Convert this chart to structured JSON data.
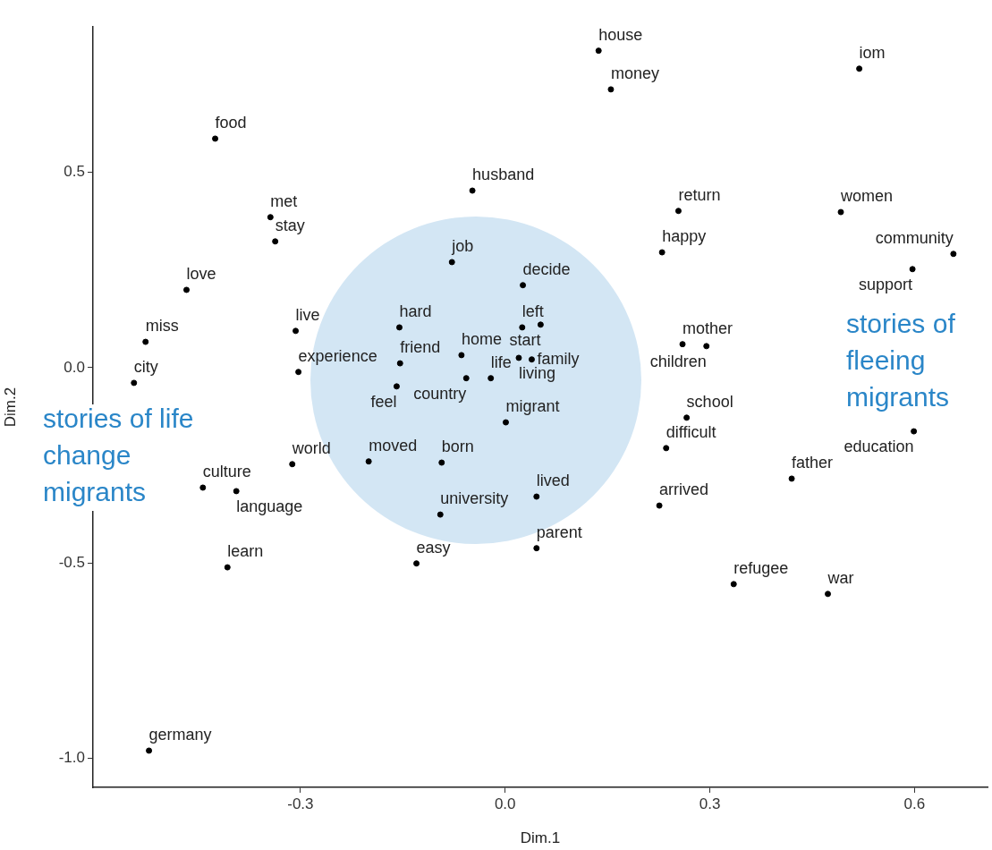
{
  "chart_data": {
    "type": "scatter",
    "xlabel": "Dim.1",
    "ylabel": "Dim.2",
    "color": "#000000",
    "marker": "circle",
    "x": [
      0.137,
      0.155,
      0.519,
      -0.425,
      -0.048,
      -0.344,
      0.254,
      0.492,
      -0.337,
      0.23,
      0.657,
      -0.078,
      0.597,
      -0.467,
      0.026,
      -0.155,
      0.025,
      0.052,
      -0.307,
      -0.527,
      0.26,
      0.295,
      -0.064,
      0.02,
      0.039,
      -0.154,
      -0.303,
      -0.544,
      -0.057,
      -0.021,
      -0.159,
      0.266,
      0.001,
      0.599,
      0.236,
      -0.312,
      -0.2,
      -0.093,
      0.42,
      -0.443,
      -0.394,
      0.046,
      0.226,
      -0.095,
      0.046,
      -0.13,
      -0.407,
      0.335,
      0.473,
      -0.522
    ],
    "values": [
      0.811,
      0.712,
      0.765,
      0.586,
      0.453,
      0.385,
      0.401,
      0.398,
      0.323,
      0.295,
      0.291,
      0.27,
      0.252,
      0.199,
      0.211,
      0.103,
      0.103,
      0.11,
      0.094,
      0.066,
      0.06,
      0.055,
      0.032,
      0.025,
      0.021,
      0.011,
      -0.011,
      -0.039,
      -0.027,
      -0.027,
      -0.048,
      -0.128,
      -0.14,
      -0.163,
      -0.206,
      -0.247,
      -0.24,
      -0.243,
      -0.284,
      -0.307,
      -0.316,
      -0.33,
      -0.353,
      -0.376,
      -0.462,
      -0.501,
      -0.511,
      -0.554,
      -0.579,
      -0.98
    ],
    "xlim": [
      -0.604,
      0.707
    ],
    "ylim": [
      -1.074,
      0.872
    ],
    "xticks": [
      -0.3,
      {
        "value": 0,
        "label": "0.0"
      },
      0.3,
      0.6
    ],
    "yticks": [
      {
        "value": -1,
        "label": "-1.0"
      },
      -0.5,
      {
        "value": 0,
        "label": "0.0"
      },
      0.5
    ],
    "annotations": [
      {
        "text": "house",
        "x": 0.137,
        "y": 0.811
      },
      {
        "text": "money",
        "x": 0.155,
        "y": 0.712
      },
      {
        "text": "iom",
        "x": 0.519,
        "y": 0.765
      },
      {
        "text": "food",
        "x": -0.425,
        "y": 0.586
      },
      {
        "text": "husband",
        "x": -0.048,
        "y": 0.453
      },
      {
        "text": "met",
        "x": -0.344,
        "y": 0.385
      },
      {
        "text": "return",
        "x": 0.254,
        "y": 0.401
      },
      {
        "text": "women",
        "x": 0.492,
        "y": 0.398
      },
      {
        "text": "stay",
        "x": -0.337,
        "y": 0.323
      },
      {
        "text": "happy",
        "x": 0.23,
        "y": 0.295
      },
      {
        "text": "community",
        "x": 0.657,
        "y": 0.291
      },
      {
        "text": "job",
        "x": -0.078,
        "y": 0.27
      },
      {
        "text": "support",
        "x": 0.597,
        "y": 0.252
      },
      {
        "text": "love",
        "x": -0.467,
        "y": 0.199
      },
      {
        "text": "decide",
        "x": 0.026,
        "y": 0.211
      },
      {
        "text": "hard",
        "x": -0.155,
        "y": 0.103
      },
      {
        "text": "left",
        "x": 0.025,
        "y": 0.103
      },
      {
        "text": "start",
        "x": 0.052,
        "y": 0.11
      },
      {
        "text": "live",
        "x": -0.307,
        "y": 0.094
      },
      {
        "text": "miss",
        "x": -0.527,
        "y": 0.066
      },
      {
        "text": "mother",
        "x": 0.26,
        "y": 0.06
      },
      {
        "text": "children",
        "x": 0.295,
        "y": 0.055
      },
      {
        "text": "home",
        "x": -0.064,
        "y": 0.032
      },
      {
        "text": "living",
        "x": 0.02,
        "y": 0.025
      },
      {
        "text": "family",
        "x": 0.039,
        "y": 0.021
      },
      {
        "text": "friend",
        "x": -0.154,
        "y": 0.011
      },
      {
        "text": "experience",
        "x": -0.303,
        "y": -0.011
      },
      {
        "text": "city",
        "x": -0.544,
        "y": -0.039
      },
      {
        "text": "country",
        "x": -0.057,
        "y": -0.027
      },
      {
        "text": "life",
        "x": -0.021,
        "y": -0.027
      },
      {
        "text": "feel",
        "x": -0.159,
        "y": -0.048
      },
      {
        "text": "school",
        "x": 0.266,
        "y": -0.128
      },
      {
        "text": "migrant",
        "x": 0.001,
        "y": -0.14
      },
      {
        "text": "education",
        "x": 0.599,
        "y": -0.163
      },
      {
        "text": "difficult",
        "x": 0.236,
        "y": -0.206
      },
      {
        "text": "world",
        "x": -0.312,
        "y": -0.247
      },
      {
        "text": "moved",
        "x": -0.2,
        "y": -0.24
      },
      {
        "text": "born",
        "x": -0.093,
        "y": -0.243
      },
      {
        "text": "father",
        "x": 0.42,
        "y": -0.284
      },
      {
        "text": "culture",
        "x": -0.443,
        "y": -0.307
      },
      {
        "text": "language",
        "x": -0.394,
        "y": -0.316
      },
      {
        "text": "lived",
        "x": 0.046,
        "y": -0.33
      },
      {
        "text": "arrived",
        "x": 0.226,
        "y": -0.353
      },
      {
        "text": "university",
        "x": -0.095,
        "y": -0.376
      },
      {
        "text": "parent",
        "x": 0.046,
        "y": -0.462
      },
      {
        "text": "easy",
        "x": -0.13,
        "y": -0.501
      },
      {
        "text": "learn",
        "x": -0.407,
        "y": -0.511
      },
      {
        "text": "refugee",
        "x": 0.335,
        "y": -0.554
      },
      {
        "text": "war",
        "x": 0.473,
        "y": -0.579
      },
      {
        "text": "germany",
        "x": -0.522,
        "y": -0.98
      },
      "stories of life\nchange\nmigrants",
      "stories of\nfleeing\nmigrants"
    ]
  }
}
